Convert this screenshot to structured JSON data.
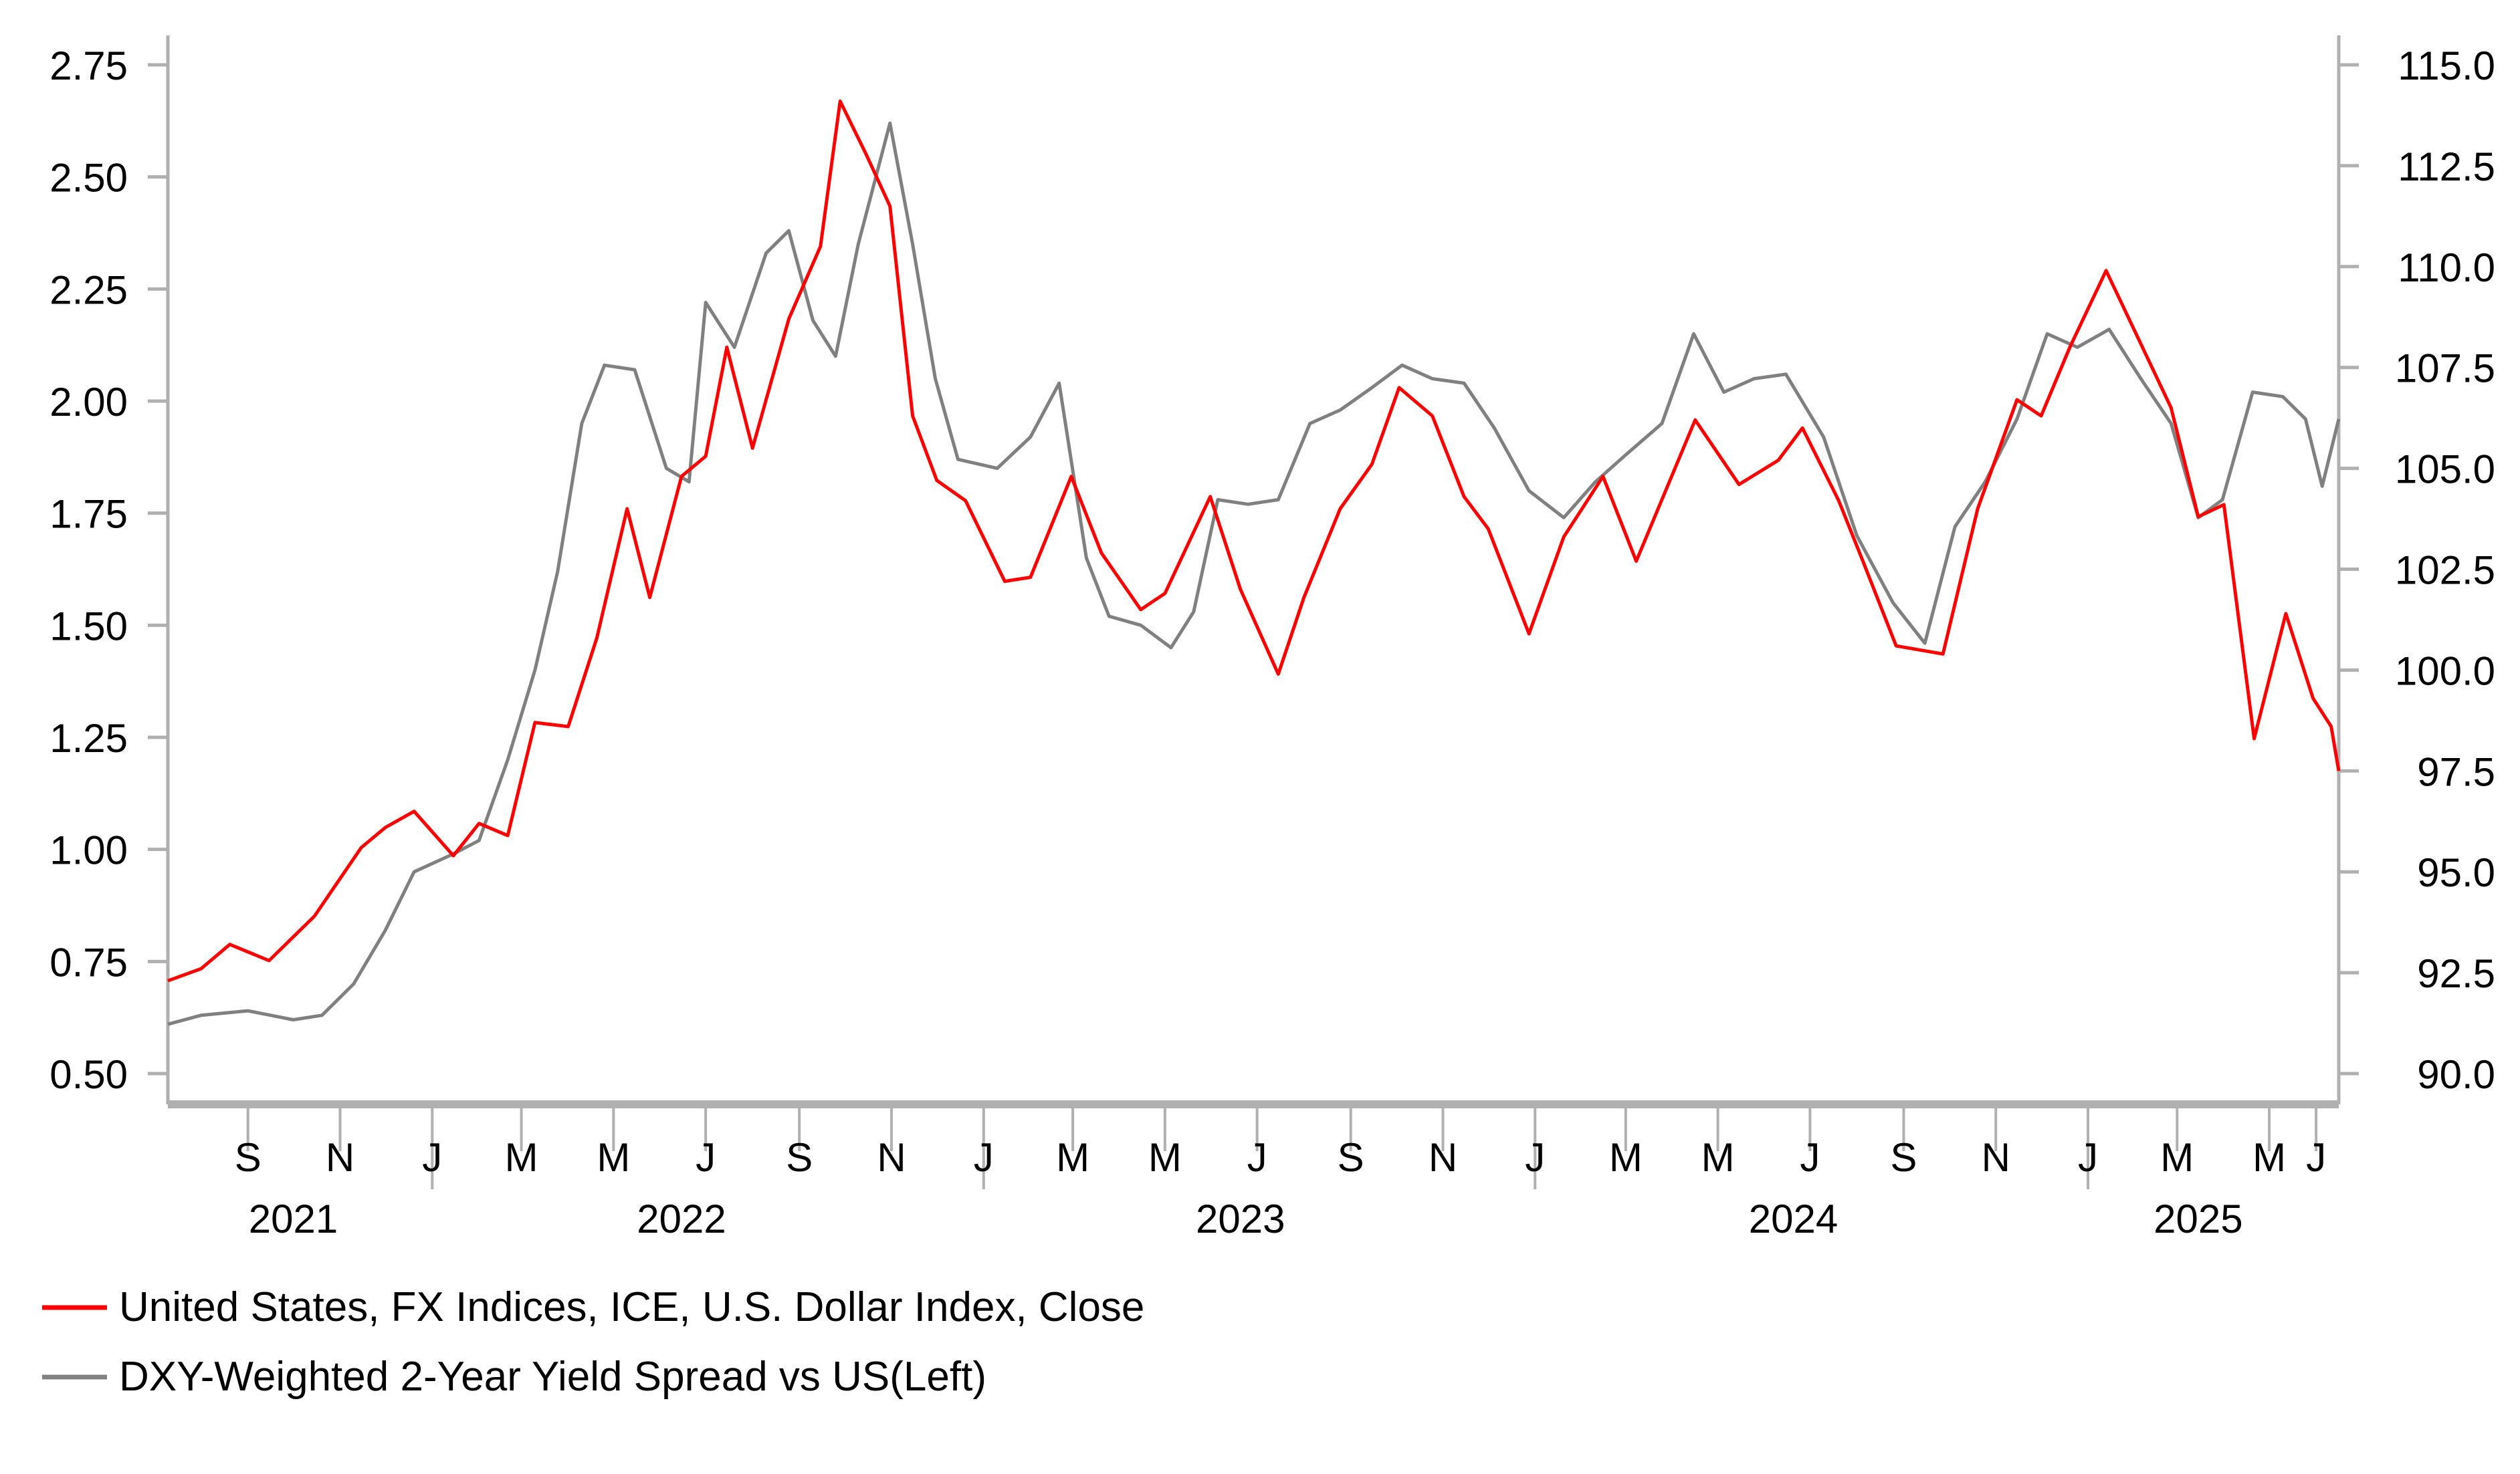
{
  "chart_data": {
    "type": "line",
    "title": "",
    "x_range": [
      "2021-07-10",
      "2025-06-16"
    ],
    "left_axis": {
      "ylim": [
        0.5,
        2.75
      ],
      "ticks": [
        "0.50",
        "0.75",
        "1.00",
        "1.25",
        "1.50",
        "1.75",
        "2.00",
        "2.25",
        "2.50",
        "2.75"
      ]
    },
    "right_axis": {
      "ylim": [
        90,
        115
      ],
      "ticks": [
        "90.0",
        "92.5",
        "95.0",
        "97.5",
        "100.0",
        "102.5",
        "105.0",
        "107.5",
        "110.0",
        "112.5",
        "115.0"
      ]
    },
    "month_ticks": [
      {
        "date": "2021-09-01",
        "label": "S"
      },
      {
        "date": "2021-11-01",
        "label": "N"
      },
      {
        "date": "2022-01-01",
        "label": "J"
      },
      {
        "date": "2022-03-01",
        "label": "M"
      },
      {
        "date": "2022-05-01",
        "label": "M"
      },
      {
        "date": "2022-07-01",
        "label": "J"
      },
      {
        "date": "2022-09-01",
        "label": "S"
      },
      {
        "date": "2022-11-01",
        "label": "N"
      },
      {
        "date": "2023-01-01",
        "label": "J"
      },
      {
        "date": "2023-03-01",
        "label": "M"
      },
      {
        "date": "2023-05-01",
        "label": "M"
      },
      {
        "date": "2023-07-01",
        "label": "J"
      },
      {
        "date": "2023-09-01",
        "label": "S"
      },
      {
        "date": "2023-11-01",
        "label": "N"
      },
      {
        "date": "2024-01-01",
        "label": "J"
      },
      {
        "date": "2024-03-01",
        "label": "M"
      },
      {
        "date": "2024-05-01",
        "label": "M"
      },
      {
        "date": "2024-07-01",
        "label": "J"
      },
      {
        "date": "2024-09-01",
        "label": "S"
      },
      {
        "date": "2024-11-01",
        "label": "N"
      },
      {
        "date": "2025-01-01",
        "label": "J"
      },
      {
        "date": "2025-03-01",
        "label": "M"
      },
      {
        "date": "2025-05-01",
        "label": "M"
      },
      {
        "date": "2025-06-01",
        "label": "J"
      }
    ],
    "year_labels": [
      {
        "date": "2021-10-01",
        "label": "2021"
      },
      {
        "date": "2022-06-15",
        "label": "2022"
      },
      {
        "date": "2023-06-20",
        "label": "2023"
      },
      {
        "date": "2024-06-20",
        "label": "2024"
      },
      {
        "date": "2025-03-15",
        "label": "2025"
      }
    ],
    "legend_placement": "bottom-left",
    "grid": false,
    "series": [
      {
        "name": "United States, FX Indices, ICE, U.S. Dollar Index, Close",
        "axis": "right",
        "color": "#ff0000",
        "x": [
          "2021-07-10",
          "2021-08-01",
          "2021-08-20",
          "2021-09-15",
          "2021-10-15",
          "2021-11-15",
          "2021-12-01",
          "2021-12-20",
          "2022-01-15",
          "2022-02-01",
          "2022-02-20",
          "2022-03-10",
          "2022-04-01",
          "2022-04-20",
          "2022-05-10",
          "2022-05-25",
          "2022-06-15",
          "2022-07-01",
          "2022-07-15",
          "2022-08-01",
          "2022-08-25",
          "2022-09-15",
          "2022-09-28",
          "2022-10-15",
          "2022-10-31",
          "2022-11-15",
          "2022-12-01",
          "2022-12-20",
          "2023-01-15",
          "2023-02-01",
          "2023-02-28",
          "2023-03-20",
          "2023-04-15",
          "2023-05-01",
          "2023-05-31",
          "2023-06-20",
          "2023-07-15",
          "2023-08-01",
          "2023-08-25",
          "2023-09-15",
          "2023-10-03",
          "2023-10-25",
          "2023-11-15",
          "2023-12-01",
          "2023-12-28",
          "2024-01-20",
          "2024-02-15",
          "2024-03-08",
          "2024-04-16",
          "2024-05-15",
          "2024-06-10",
          "2024-06-26",
          "2024-07-20",
          "2024-08-05",
          "2024-08-27",
          "2024-09-27",
          "2024-10-20",
          "2024-11-15",
          "2024-12-01",
          "2024-12-20",
          "2025-01-13",
          "2025-02-01",
          "2025-02-25",
          "2025-03-15",
          "2025-04-01",
          "2025-04-21",
          "2025-05-12",
          "2025-05-30",
          "2025-06-11",
          "2025-06-16"
        ],
        "values": [
          92.3,
          92.6,
          93.2,
          92.8,
          93.9,
          95.6,
          96.1,
          96.5,
          95.4,
          96.2,
          95.9,
          98.7,
          98.6,
          100.8,
          104.0,
          101.8,
          104.8,
          105.3,
          108.0,
          105.5,
          108.7,
          110.5,
          114.1,
          112.8,
          111.5,
          106.3,
          104.7,
          104.2,
          102.2,
          102.3,
          104.8,
          102.9,
          101.5,
          101.9,
          104.3,
          102.0,
          99.9,
          101.8,
          104.0,
          105.1,
          107.0,
          106.3,
          104.3,
          103.5,
          100.9,
          103.3,
          104.8,
          102.7,
          106.2,
          104.6,
          105.2,
          106.0,
          104.2,
          102.7,
          100.6,
          100.4,
          104.0,
          106.7,
          106.3,
          108.0,
          109.9,
          108.4,
          106.5,
          103.8,
          104.1,
          98.3,
          101.4,
          99.3,
          98.6,
          97.5
        ]
      },
      {
        "name": "DXY-Weighted 2-Year Yield Spread vs US(Left)",
        "axis": "left",
        "color": "#808080",
        "x": [
          "2021-07-10",
          "2021-08-01",
          "2021-09-01",
          "2021-10-01",
          "2021-10-20",
          "2021-11-10",
          "2021-12-01",
          "2021-12-20",
          "2022-01-15",
          "2022-02-01",
          "2022-02-20",
          "2022-03-10",
          "2022-03-25",
          "2022-04-10",
          "2022-04-25",
          "2022-05-15",
          "2022-06-05",
          "2022-06-20",
          "2022-07-01",
          "2022-07-20",
          "2022-08-10",
          "2022-08-25",
          "2022-09-10",
          "2022-09-25",
          "2022-10-10",
          "2022-10-31",
          "2022-11-15",
          "2022-11-30",
          "2022-12-15",
          "2023-01-10",
          "2023-02-01",
          "2023-02-20",
          "2023-03-10",
          "2023-03-25",
          "2023-04-15",
          "2023-05-05",
          "2023-05-20",
          "2023-06-05",
          "2023-06-25",
          "2023-07-15",
          "2023-08-05",
          "2023-08-25",
          "2023-09-15",
          "2023-10-05",
          "2023-10-25",
          "2023-11-15",
          "2023-12-05",
          "2023-12-28",
          "2024-01-20",
          "2024-02-10",
          "2024-03-01",
          "2024-03-25",
          "2024-04-15",
          "2024-05-05",
          "2024-05-25",
          "2024-06-15",
          "2024-07-10",
          "2024-08-01",
          "2024-08-25",
          "2024-09-15",
          "2024-10-05",
          "2024-10-25",
          "2024-11-15",
          "2024-12-05",
          "2024-12-25",
          "2025-01-15",
          "2025-02-05",
          "2025-02-25",
          "2025-03-15",
          "2025-03-31",
          "2025-04-20",
          "2025-05-10",
          "2025-05-25",
          "2025-06-05",
          "2025-06-16"
        ],
        "values": [
          0.61,
          0.63,
          0.64,
          0.62,
          0.63,
          0.7,
          0.82,
          0.95,
          0.99,
          1.02,
          1.2,
          1.4,
          1.62,
          1.95,
          2.08,
          2.07,
          1.85,
          1.82,
          2.22,
          2.12,
          2.33,
          2.38,
          2.18,
          2.1,
          2.35,
          2.62,
          2.35,
          2.05,
          1.87,
          1.85,
          1.92,
          2.04,
          1.65,
          1.52,
          1.5,
          1.45,
          1.53,
          1.78,
          1.77,
          1.78,
          1.95,
          1.98,
          2.03,
          2.08,
          2.05,
          2.04,
          1.94,
          1.8,
          1.74,
          1.82,
          1.88,
          1.95,
          2.15,
          2.02,
          2.05,
          2.06,
          1.92,
          1.7,
          1.55,
          1.46,
          1.72,
          1.82,
          1.96,
          2.15,
          2.12,
          2.16,
          2.05,
          1.95,
          1.74,
          1.78,
          2.02,
          2.01,
          1.96,
          1.81,
          1.96
        ]
      }
    ]
  }
}
